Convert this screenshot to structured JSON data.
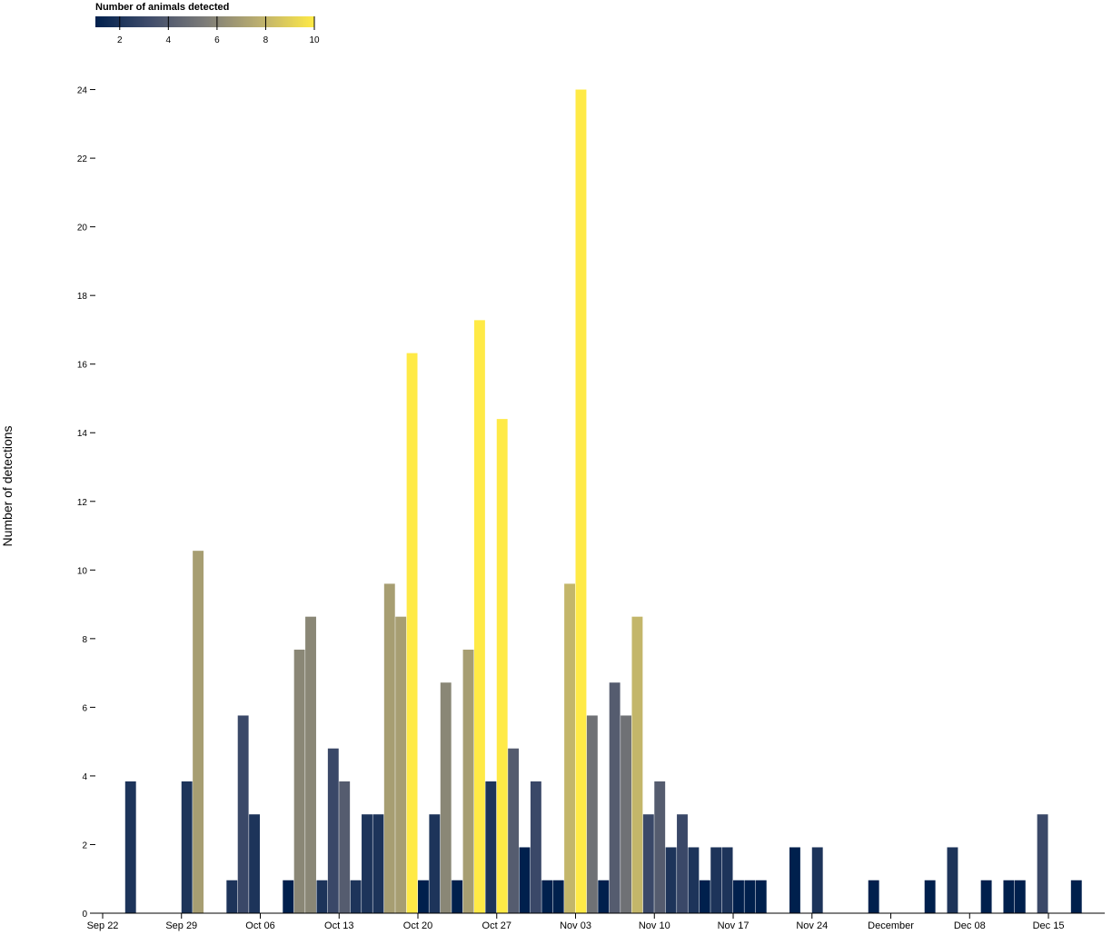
{
  "chart_data": {
    "type": "bar",
    "y_label": "Number of detections",
    "x": [
      "Sep 24",
      "Sep 29",
      "Sep 30",
      "Oct 03",
      "Oct 04",
      "Oct 05",
      "Oct 08",
      "Oct 09",
      "Oct 10",
      "Oct 11",
      "Oct 12",
      "Oct 13",
      "Oct 14",
      "Oct 15",
      "Oct 16",
      "Oct 17",
      "Oct 18",
      "Oct 19",
      "Oct 20",
      "Oct 21",
      "Oct 22",
      "Oct 23",
      "Oct 24",
      "Oct 25",
      "Oct 26",
      "Oct 27",
      "Oct 28",
      "Oct 29",
      "Oct 30",
      "Oct 31",
      "Nov 01",
      "Nov 02",
      "Nov 03",
      "Nov 04",
      "Nov 05",
      "Nov 06",
      "Nov 07",
      "Nov 08",
      "Nov 09",
      "Nov 10",
      "Nov 11",
      "Nov 12",
      "Nov 13",
      "Nov 14",
      "Nov 15",
      "Nov 16",
      "Nov 17",
      "Nov 18",
      "Nov 19",
      "Nov 22",
      "Nov 24",
      "Nov 29",
      "Dec 04",
      "Dec 06",
      "Dec 09",
      "Dec 11",
      "Dec 12",
      "Dec 14",
      "Dec 17"
    ],
    "values": [
      3.84,
      3.84,
      10.56,
      0.96,
      5.76,
      2.88,
      0.96,
      7.68,
      8.64,
      0.96,
      4.8,
      3.84,
      0.96,
      2.88,
      2.88,
      9.6,
      8.64,
      16.32,
      0.96,
      2.88,
      6.72,
      0.96,
      7.68,
      17.28,
      3.84,
      14.4,
      4.8,
      1.92,
      3.84,
      0.96,
      0.96,
      9.6,
      24,
      5.76,
      0.96,
      6.72,
      5.76,
      8.64,
      2.88,
      3.84,
      1.92,
      2.88,
      1.92,
      0.96,
      1.92,
      1.92,
      0.96,
      0.96,
      0.96,
      1.92,
      1.92,
      0.96,
      0.96,
      1.92,
      0.96,
      0.96,
      0.96,
      2.88,
      0.96
    ],
    "animals": [
      2,
      2,
      7,
      2,
      3,
      2,
      1,
      6,
      6,
      2,
      3,
      4,
      2,
      2,
      2,
      7,
      7,
      10,
      1,
      2,
      6,
      1,
      7,
      10,
      2,
      10,
      4,
      1,
      3,
      1,
      1,
      8,
      10,
      5,
      1,
      4,
      5,
      8,
      3,
      4,
      2,
      3,
      2,
      1,
      2,
      2,
      1,
      1,
      1,
      1,
      2,
      1,
      1,
      2,
      1,
      1,
      1,
      3,
      1
    ],
    "xlim": [
      "Sep 22",
      "Dec 20"
    ],
    "xticks": [
      "Sep 22",
      "Sep 29",
      "Oct 06",
      "Oct 13",
      "Oct 20",
      "Oct 27",
      "Nov 03",
      "Nov 10",
      "Nov 17",
      "Nov 24",
      {
        "value": "Dec 01",
        "label": "December"
      },
      "Dec 08",
      "Dec 15"
    ],
    "ylim": [
      0,
      24.2
    ],
    "yticks": [
      0,
      2,
      4,
      6,
      8,
      10,
      12,
      14,
      16,
      18,
      20,
      22,
      24
    ],
    "color_scale": {
      "title": "Number of animals detected",
      "scheme": "cividis",
      "domain": [
        1,
        10
      ],
      "ticks": [
        2,
        4,
        6,
        8,
        10
      ]
    }
  }
}
